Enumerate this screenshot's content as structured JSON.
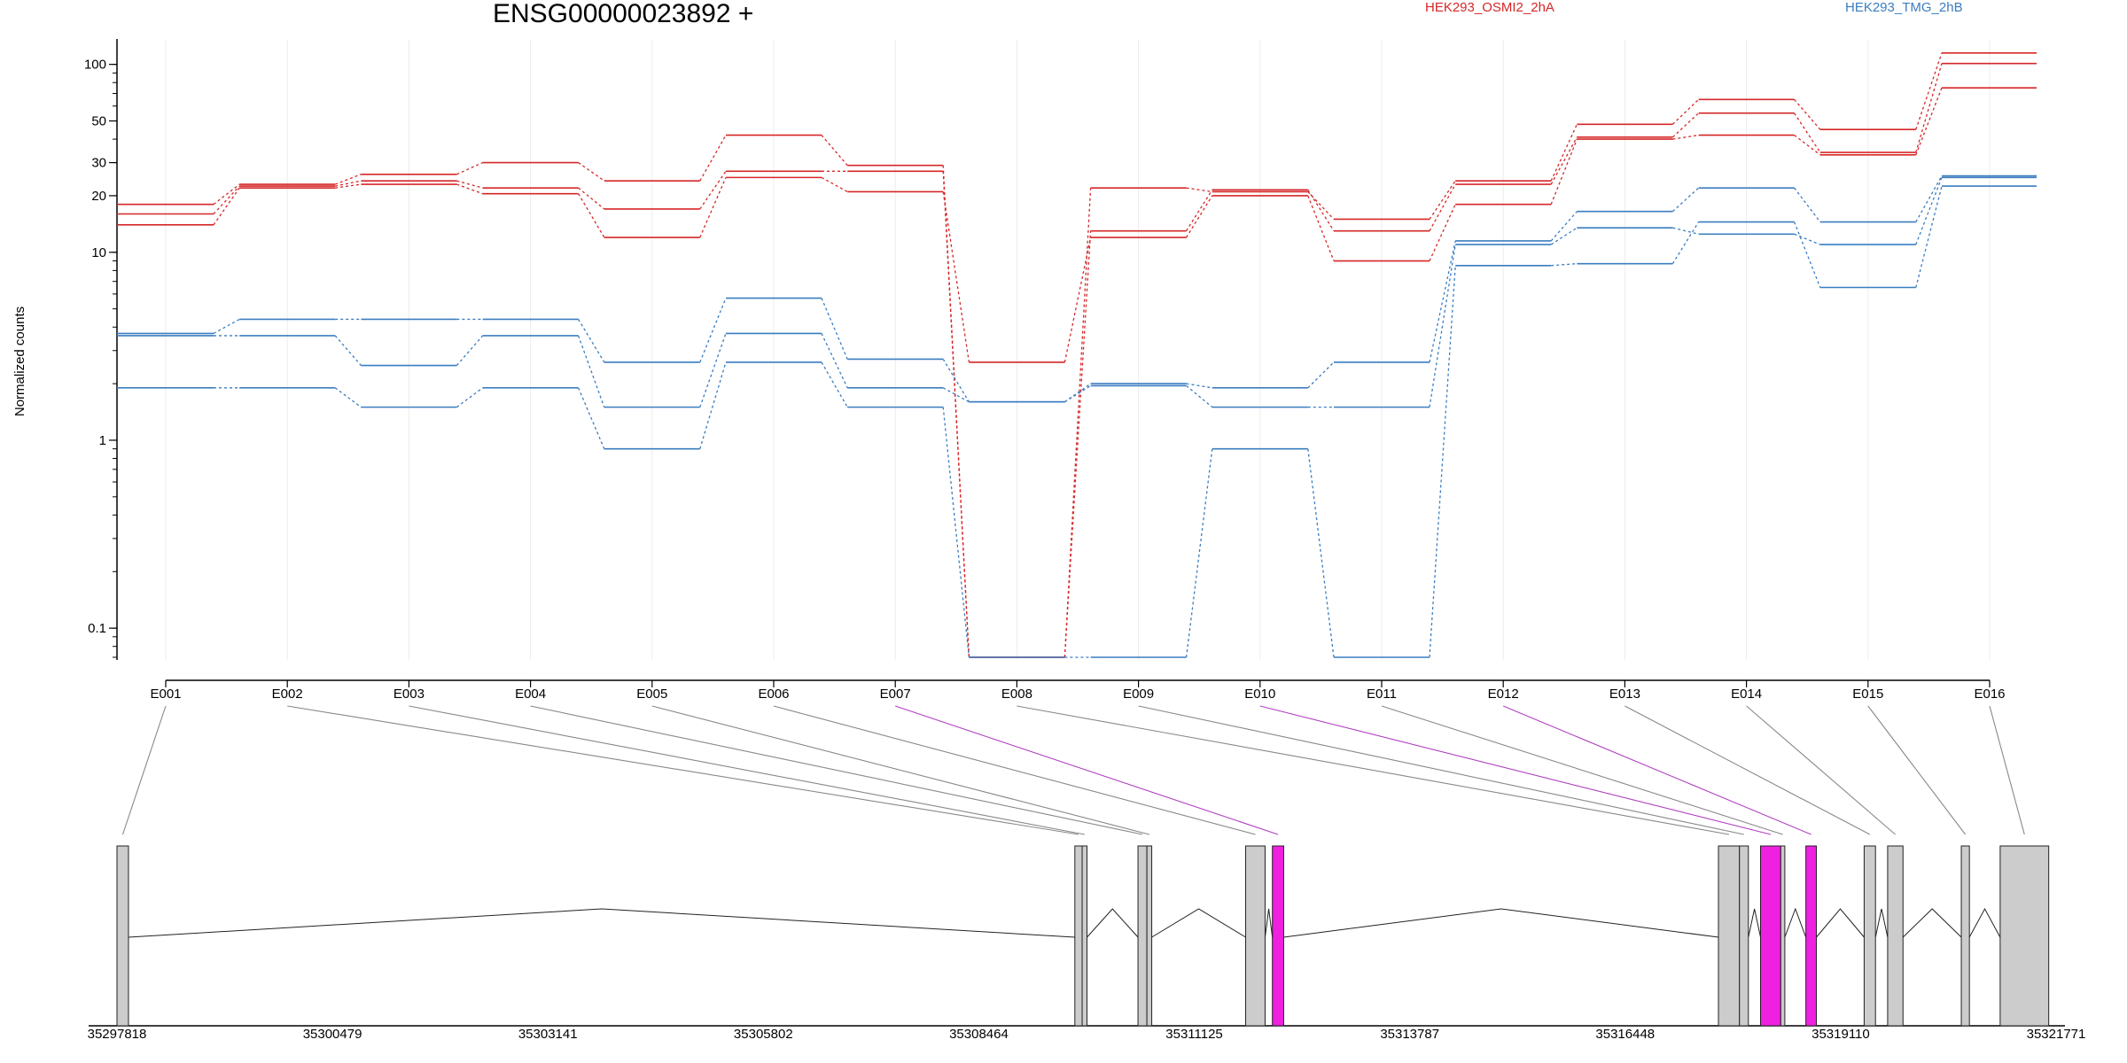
{
  "chart_data": {
    "type": "line",
    "title": "ENSG00000023892 +",
    "ylabel": "Normalized counts",
    "yscale": "log",
    "ylim": [
      0.07,
      135
    ],
    "yticks": [
      0.1,
      1,
      10,
      20,
      30,
      50,
      100
    ],
    "ytick_labels": [
      "0.1",
      "1",
      "10",
      "20",
      "30",
      "50",
      "100"
    ],
    "legend_position": "top-right",
    "categories": [
      "E001",
      "E002",
      "E003",
      "E004",
      "E005",
      "E006",
      "E007",
      "E008",
      "E009",
      "E010",
      "E011",
      "E012",
      "E013",
      "E014",
      "E015",
      "E016"
    ],
    "colors": {
      "HEK293_OSMI2_2hA": "#d62728",
      "HEK293_TMG_2hB": "#3a7dc0"
    },
    "legend": [
      {
        "label": "HEK293_OSMI2_2hA",
        "color": "#d62728"
      },
      {
        "label": "HEK293_TMG_2hB",
        "color": "#3a7dc0"
      }
    ],
    "series": [
      {
        "group": "HEK293_OSMI2_2hA",
        "values": [
          18,
          23,
          26,
          30,
          24,
          42,
          29,
          0.07,
          22,
          21,
          15,
          24,
          48,
          65,
          45,
          115
        ]
      },
      {
        "group": "HEK293_OSMI2_2hA",
        "values": [
          16,
          22.5,
          24,
          22,
          17,
          27,
          27,
          0.07,
          13,
          21.5,
          13,
          23,
          41,
          55,
          34,
          101
        ]
      },
      {
        "group": "HEK293_OSMI2_2hA",
        "values": [
          14,
          22,
          23,
          20.5,
          12,
          25,
          21,
          2.6,
          12,
          20,
          9,
          18,
          40,
          42,
          33,
          75
        ]
      },
      {
        "group": "HEK293_TMG_2hB",
        "values": [
          3.7,
          4.4,
          4.4,
          4.4,
          2.6,
          5.7,
          2.7,
          1.6,
          2.0,
          1.9,
          2.6,
          11.5,
          16.5,
          22,
          14.5,
          25.5
        ]
      },
      {
        "group": "HEK293_TMG_2hB",
        "values": [
          3.6,
          3.6,
          2.5,
          3.6,
          1.5,
          3.7,
          1.9,
          1.6,
          1.95,
          1.5,
          1.5,
          11,
          13.5,
          12.5,
          11,
          25
        ]
      },
      {
        "group": "HEK293_TMG_2hB",
        "values": [
          1.9,
          1.9,
          1.5,
          1.9,
          0.9,
          2.6,
          1.5,
          0.07,
          0.07,
          0.9,
          0.07,
          8.5,
          8.7,
          14.5,
          6.5,
          22.5
        ]
      }
    ],
    "highlighted_exons": [
      "E007",
      "E010",
      "E012"
    ],
    "gene_model": {
      "genomic_start": 35297818,
      "genomic_end": 35321771,
      "tick_positions": [
        35297818,
        35300479,
        35303141,
        35305802,
        35308464,
        35311125,
        35313787,
        35316448,
        35319110,
        35321771
      ],
      "tick_labels": [
        "35297818",
        "35300479",
        "35303141",
        "35305802",
        "35308464",
        "35311125",
        "35313787",
        "35316448",
        "35319110",
        "35321771"
      ],
      "exons": [
        {
          "id": "E001",
          "start": 35297818,
          "end": 35297960
        },
        {
          "id": "E002",
          "start": 35309650,
          "end": 35309740
        },
        {
          "id": "E003",
          "start": 35309740,
          "end": 35309800
        },
        {
          "id": "E004",
          "start": 35310430,
          "end": 35310540
        },
        {
          "id": "E005",
          "start": 35310540,
          "end": 35310600
        },
        {
          "id": "E006",
          "start": 35311760,
          "end": 35312000
        },
        {
          "id": "E007",
          "start": 35312090,
          "end": 35312230
        },
        {
          "id": "E008",
          "start": 35317600,
          "end": 35317860
        },
        {
          "id": "E009",
          "start": 35317860,
          "end": 35317970
        },
        {
          "id": "E010",
          "start": 35318120,
          "end": 35318370
        },
        {
          "id": "E011",
          "start": 35318370,
          "end": 35318420
        },
        {
          "id": "E012",
          "start": 35318680,
          "end": 35318810
        },
        {
          "id": "E013",
          "start": 35319400,
          "end": 35319540
        },
        {
          "id": "E014",
          "start": 35319690,
          "end": 35319880
        },
        {
          "id": "E015",
          "start": 35320600,
          "end": 35320700
        },
        {
          "id": "E016",
          "start": 35321080,
          "end": 35321680
        }
      ],
      "exon_fill": "#cccccc",
      "highlight_fill": "#f020e0"
    }
  }
}
